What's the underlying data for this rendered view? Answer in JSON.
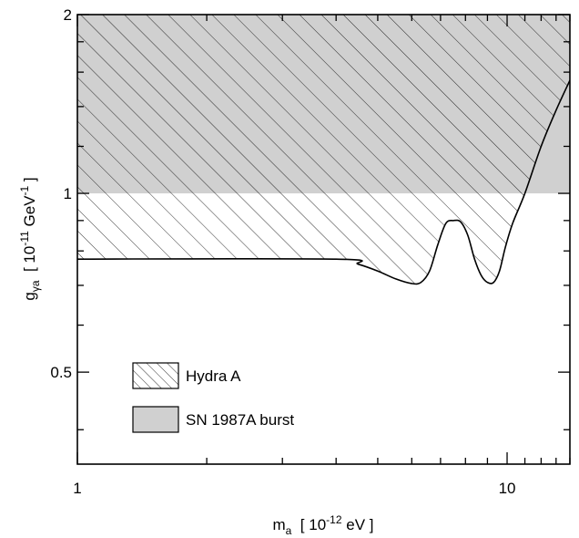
{
  "chart_data": {
    "type": "area",
    "title": "",
    "xscale": "log",
    "yscale": "log",
    "xlim": [
      1,
      14
    ],
    "ylim": [
      0.35,
      2
    ],
    "xticks": [
      1,
      10
    ],
    "xtick_labels": [
      "1",
      "10"
    ],
    "yticks": [
      0.5,
      1,
      2
    ],
    "ytick_labels": [
      "0.5",
      "1",
      "2"
    ],
    "xlabel": {
      "base": "m",
      "sub": "a",
      "mid": "  [ 10",
      "sup": "-12",
      "end": " eV ]"
    },
    "ylabel": {
      "base": "g",
      "sub": "γa",
      "mid": "  [ 10",
      "sup": "-11",
      "mid2": " GeV",
      "sup2": "-1",
      "end": " ]"
    },
    "series": [
      {
        "name": "Hydra A",
        "style": "hatched",
        "fill": "#ffffff",
        "stroke": "#000000",
        "region": "above boundary, up to top of plot",
        "boundary": {
          "x": [
            1,
            4.0,
            4.5,
            5.0,
            5.5,
            6.0,
            6.3,
            6.6,
            6.9,
            7.2,
            7.5,
            7.8,
            8.1,
            8.4,
            8.7,
            9.0,
            9.3,
            9.6,
            9.9,
            10.3,
            11.0,
            12.0,
            13.0,
            14.0
          ],
          "y": [
            0.775,
            0.775,
            0.76,
            0.74,
            0.718,
            0.705,
            0.708,
            0.74,
            0.82,
            0.89,
            0.9,
            0.895,
            0.85,
            0.775,
            0.728,
            0.708,
            0.708,
            0.74,
            0.81,
            0.89,
            1.0,
            1.2,
            1.38,
            1.55
          ]
        }
      },
      {
        "name": "SN 1987A burst",
        "style": "solid",
        "fill": "#d0d0d0",
        "region": "g ≥ 1",
        "y_min": 1
      }
    ],
    "legend_position": "bottom-left",
    "grid": false
  }
}
